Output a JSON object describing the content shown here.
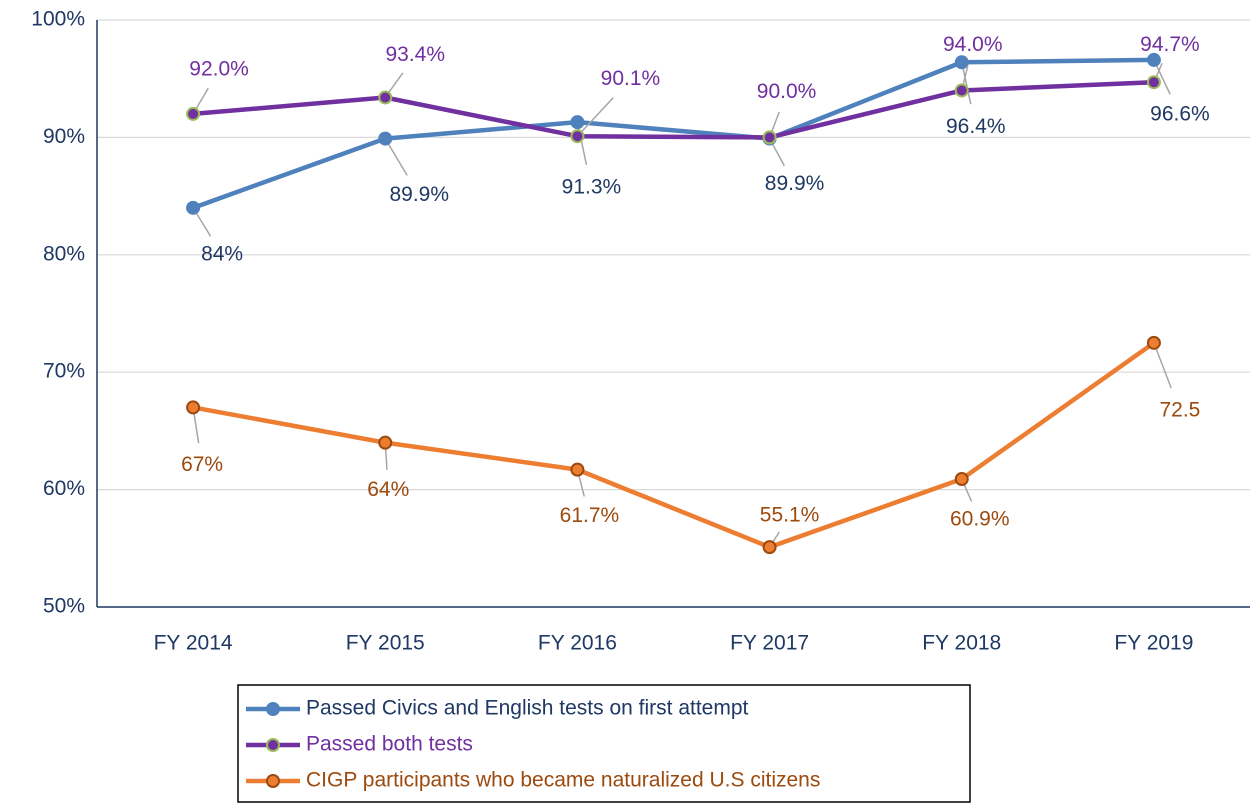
{
  "chart_data": {
    "type": "line",
    "categories": [
      "FY 2014",
      "FY 2015",
      "FY 2016",
      "FY 2017",
      "FY 2018",
      "FY 2019"
    ],
    "ylim": [
      50,
      100
    ],
    "yticks": [
      {
        "value": 50,
        "label": "50%"
      },
      {
        "value": 60,
        "label": "60%"
      },
      {
        "value": 70,
        "label": "70%"
      },
      {
        "value": 80,
        "label": "80%"
      },
      {
        "value": 90,
        "label": "90%"
      },
      {
        "value": 100,
        "label": "100%"
      }
    ],
    "grid": true,
    "legend": "bottom",
    "series": [
      {
        "name": "Passed Civics and English tests on first attempt",
        "color": "#4f81bd",
        "marker_color": "#4f81bd",
        "label_color": "#1f3864",
        "values": [
          84,
          89.9,
          91.3,
          89.9,
          96.4,
          96.6
        ],
        "value_labels": [
          "84%",
          "89.9%",
          "91.3%",
          "89.9%",
          "96.4%",
          "96.6%"
        ]
      },
      {
        "name": "Passed both tests",
        "color": "#7030a0",
        "marker_color": "#9bbb59",
        "label_color": "#7030a0",
        "values": [
          92.0,
          93.4,
          90.1,
          90.0,
          94.0,
          94.7
        ],
        "value_labels": [
          "92.0%",
          "93.4%",
          "90.1%",
          "90.0%",
          "94.0%",
          "94.7%"
        ]
      },
      {
        "name": "CIGP participants who became naturalized U.S citizens",
        "color": "#ed7d31",
        "marker_color": "#9c4a0e",
        "label_color": "#9c4a0e",
        "values": [
          67,
          64,
          61.7,
          55.1,
          60.9,
          72.5
        ],
        "value_labels": [
          "67%",
          "64%",
          "61.7%",
          "55.1%",
          "60.9%",
          "72.5"
        ]
      }
    ]
  }
}
